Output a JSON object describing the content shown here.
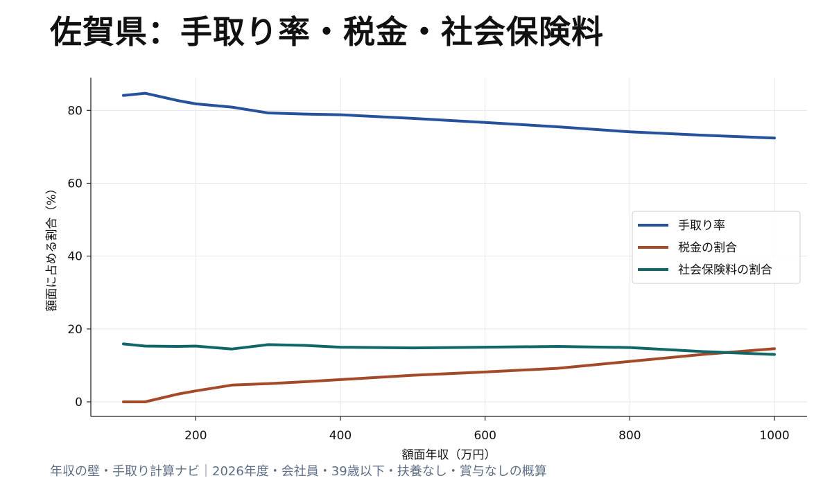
{
  "title": "佐賀県：手取り率・税金・社会保険料",
  "footer": "年収の壁・手取り計算ナビ｜2026年度・会社員・39歳以下・扶養なし・賞与なしの概算",
  "chart_data": {
    "type": "line",
    "xlabel": "額面年収（万円）",
    "ylabel": "額面に占める割合（%）",
    "xlim": [
      55,
      1045
    ],
    "ylim": [
      -4,
      89
    ],
    "xticks": [
      200,
      400,
      600,
      800,
      1000
    ],
    "yticks": [
      0,
      20,
      40,
      60,
      80
    ],
    "grid": true,
    "legend_position": "right",
    "x": [
      100,
      130,
      175,
      200,
      250,
      300,
      350,
      400,
      500,
      600,
      700,
      800,
      900,
      1000
    ],
    "series": [
      {
        "name": "手取り率",
        "color": "#26519c",
        "values": [
          84.1,
          84.7,
          82.7,
          81.8,
          80.9,
          79.3,
          79.0,
          78.8,
          77.8,
          76.7,
          75.5,
          74.1,
          73.2,
          72.4
        ]
      },
      {
        "name": "税金の割合",
        "color": "#a34a2b",
        "values": [
          0.0,
          0.0,
          2.1,
          3.0,
          4.6,
          5.0,
          5.5,
          6.1,
          7.3,
          8.2,
          9.2,
          11.1,
          13.0,
          14.6
        ]
      },
      {
        "name": "社会保険料の割合",
        "color": "#116768",
        "values": [
          15.9,
          15.3,
          15.2,
          15.3,
          14.5,
          15.7,
          15.5,
          15.0,
          14.8,
          15.0,
          15.2,
          14.9,
          13.8,
          13.0
        ]
      }
    ]
  }
}
